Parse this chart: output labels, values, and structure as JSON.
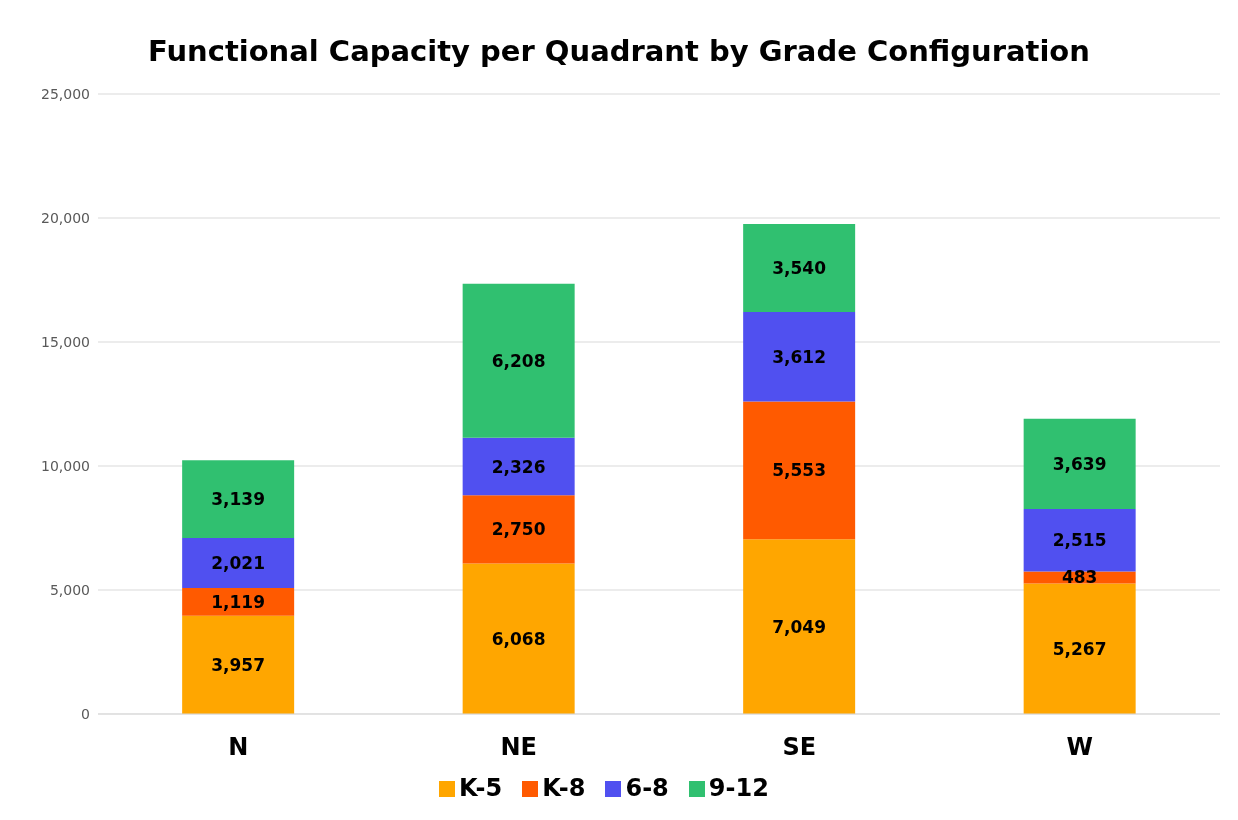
{
  "chart_data": {
    "type": "bar",
    "title": "Functional Capacity per Quadrant by Grade Configuration",
    "categories": [
      "N",
      "NE",
      "SE",
      "W"
    ],
    "stacked": true,
    "grid": "y",
    "legend": "bottom",
    "ylim": [
      0,
      25000
    ],
    "yticks": [
      {
        "value": 0,
        "label": "0"
      },
      {
        "value": 5000,
        "label": "5,000"
      },
      {
        "value": 10000,
        "label": "10,000"
      },
      {
        "value": 15000,
        "label": "15,000"
      },
      {
        "value": 20000,
        "label": "20,000"
      },
      {
        "value": 25000,
        "label": "25,000"
      }
    ],
    "series": [
      {
        "name": "K-5",
        "color": "#ffa600",
        "values": [
          3957,
          6068,
          7049,
          5267
        ],
        "value_labels": [
          "3,957",
          "6,068",
          "7,049",
          "5,267"
        ]
      },
      {
        "name": "K-8",
        "color": "#ff5a00",
        "values": [
          1119,
          2750,
          5553,
          483
        ],
        "value_labels": [
          "1,119",
          "2,750",
          "5,553",
          "483"
        ]
      },
      {
        "name": "6-8",
        "color": "#5050f0",
        "values": [
          2021,
          2326,
          3612,
          2515
        ],
        "value_labels": [
          "2,021",
          "2,326",
          "3,612",
          "2,515"
        ]
      },
      {
        "name": "9-12",
        "color": "#30c070",
        "values": [
          3139,
          6208,
          3540,
          3639
        ],
        "value_labels": [
          "3,139",
          "6,208",
          "3,540",
          "3,639"
        ]
      }
    ]
  }
}
